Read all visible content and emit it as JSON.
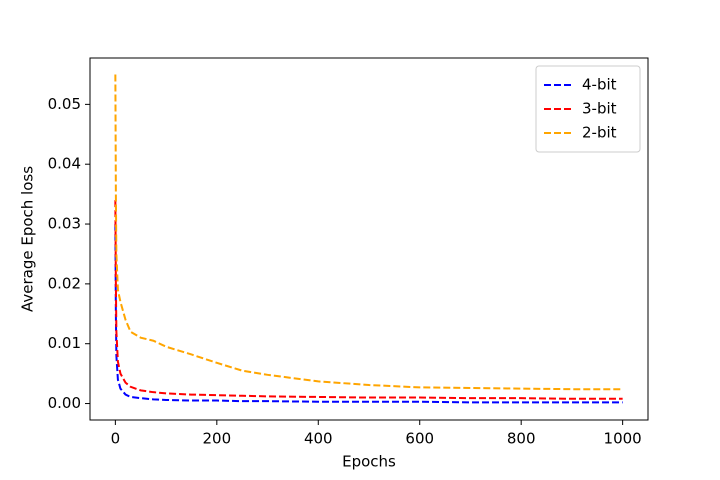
{
  "chart_data": {
    "type": "line",
    "xlabel": "Epochs",
    "ylabel": "Average Epoch loss",
    "x": [
      0,
      1,
      2,
      5,
      10,
      20,
      30,
      50,
      75,
      100,
      150,
      200,
      250,
      300,
      400,
      500,
      600,
      700,
      800,
      900,
      1000
    ],
    "series": [
      {
        "name": "4-bit",
        "color": "#0000ff",
        "values": [
          0.03,
          0.015,
          0.008,
          0.004,
          0.0025,
          0.0015,
          0.0011,
          0.0009,
          0.0007,
          0.0006,
          0.0005,
          0.0005,
          0.0004,
          0.0004,
          0.0003,
          0.0003,
          0.0003,
          0.0002,
          0.0002,
          0.0002,
          0.0002
        ]
      },
      {
        "name": "3-bit",
        "color": "#ff0000",
        "values": [
          0.034,
          0.02,
          0.012,
          0.007,
          0.005,
          0.0035,
          0.0028,
          0.0022,
          0.0019,
          0.0017,
          0.0015,
          0.0014,
          0.0013,
          0.0012,
          0.0011,
          0.001,
          0.001,
          0.0009,
          0.0009,
          0.0008,
          0.0008
        ]
      },
      {
        "name": "2-bit",
        "color": "#ffa500",
        "values": [
          0.055,
          0.035,
          0.025,
          0.019,
          0.017,
          0.014,
          0.012,
          0.011,
          0.0105,
          0.0095,
          0.0082,
          0.0068,
          0.0055,
          0.0048,
          0.0037,
          0.0031,
          0.0027,
          0.0026,
          0.0025,
          0.0024,
          0.0024
        ]
      }
    ],
    "xlim": [
      -50,
      1050
    ],
    "xticks": [
      0,
      200,
      400,
      600,
      800,
      1000
    ],
    "ylim": [
      -0.00275,
      0.05775
    ],
    "yticks": [
      {
        "value": 0,
        "label": "0.00"
      },
      0.01,
      0.02,
      0.03,
      0.04,
      0.05
    ],
    "grid": false,
    "legend": "upper right",
    "line_style": "dashed"
  }
}
